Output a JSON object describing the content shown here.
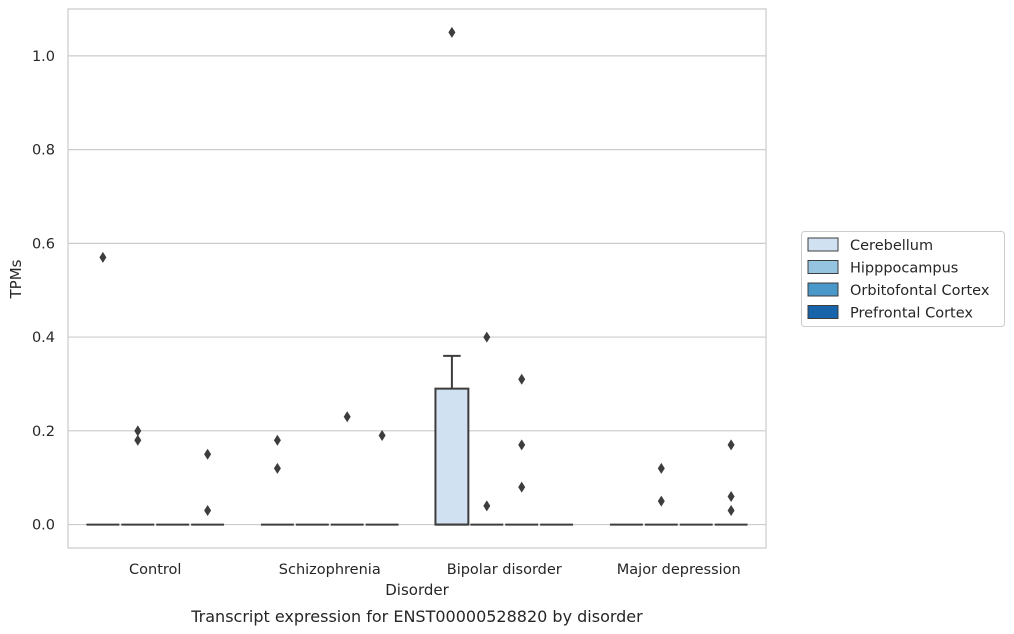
{
  "chart_data": {
    "type": "box",
    "xlabel": "Disorder",
    "ylabel": "TPMs",
    "caption": "Transcript expression for ENST00000528820 by disorder",
    "ylim": [
      -0.05,
      1.1
    ],
    "yticks": [
      "0.0",
      "0.2",
      "0.4",
      "0.6",
      "0.8",
      "1.0"
    ],
    "grid": "horizontal",
    "legend_position": "right",
    "categories": [
      "Control",
      "Schizophrenia",
      "Bipolar disorder",
      "Major depression"
    ],
    "series": [
      {
        "name": "Cerebellum",
        "color": "#d0e1f2",
        "boxes": [
          {
            "q1": 0,
            "median": 0,
            "q3": 0,
            "whisker_low": 0,
            "whisker_high": 0,
            "outliers": [
              0.57
            ]
          },
          {
            "q1": 0,
            "median": 0,
            "q3": 0,
            "whisker_low": 0,
            "whisker_high": 0,
            "outliers": [
              0.18,
              0.12
            ]
          },
          {
            "q1": 0,
            "median": 0,
            "q3": 0.29,
            "whisker_low": 0,
            "whisker_high": 0.36,
            "outliers": [
              1.05
            ]
          },
          {
            "q1": 0,
            "median": 0,
            "q3": 0,
            "whisker_low": 0,
            "whisker_high": 0,
            "outliers": []
          }
        ]
      },
      {
        "name": "Hipppocampus",
        "color": "#94c4df",
        "boxes": [
          {
            "q1": 0,
            "median": 0,
            "q3": 0,
            "whisker_low": 0,
            "whisker_high": 0,
            "outliers": [
              0.2,
              0.18
            ]
          },
          {
            "q1": 0,
            "median": 0,
            "q3": 0,
            "whisker_low": 0,
            "whisker_high": 0,
            "outliers": []
          },
          {
            "q1": 0,
            "median": 0,
            "q3": 0,
            "whisker_low": 0,
            "whisker_high": 0,
            "outliers": [
              0.4,
              0.04
            ]
          },
          {
            "q1": 0,
            "median": 0,
            "q3": 0,
            "whisker_low": 0,
            "whisker_high": 0,
            "outliers": [
              0.12,
              0.05
            ]
          }
        ]
      },
      {
        "name": "Orbitofontal Cortex",
        "color": "#4a98c9",
        "boxes": [
          {
            "q1": 0,
            "median": 0,
            "q3": 0,
            "whisker_low": 0,
            "whisker_high": 0,
            "outliers": []
          },
          {
            "q1": 0,
            "median": 0,
            "q3": 0,
            "whisker_low": 0,
            "whisker_high": 0,
            "outliers": [
              0.23
            ]
          },
          {
            "q1": 0,
            "median": 0,
            "q3": 0,
            "whisker_low": 0,
            "whisker_high": 0,
            "outliers": [
              0.31,
              0.17,
              0.08
            ]
          },
          {
            "q1": 0,
            "median": 0,
            "q3": 0,
            "whisker_low": 0,
            "whisker_high": 0,
            "outliers": []
          }
        ]
      },
      {
        "name": "Prefrontal Cortex",
        "color": "#1764ab",
        "boxes": [
          {
            "q1": 0,
            "median": 0,
            "q3": 0,
            "whisker_low": 0,
            "whisker_high": 0,
            "outliers": [
              0.15,
              0.03
            ]
          },
          {
            "q1": 0,
            "median": 0,
            "q3": 0,
            "whisker_low": 0,
            "whisker_high": 0,
            "outliers": [
              0.19
            ]
          },
          {
            "q1": 0,
            "median": 0,
            "q3": 0,
            "whisker_low": 0,
            "whisker_high": 0,
            "outliers": []
          },
          {
            "q1": 0,
            "median": 0,
            "q3": 0,
            "whisker_low": 0,
            "whisker_high": 0,
            "outliers": [
              0.17,
              0.06,
              0.03
            ]
          }
        ]
      }
    ]
  }
}
